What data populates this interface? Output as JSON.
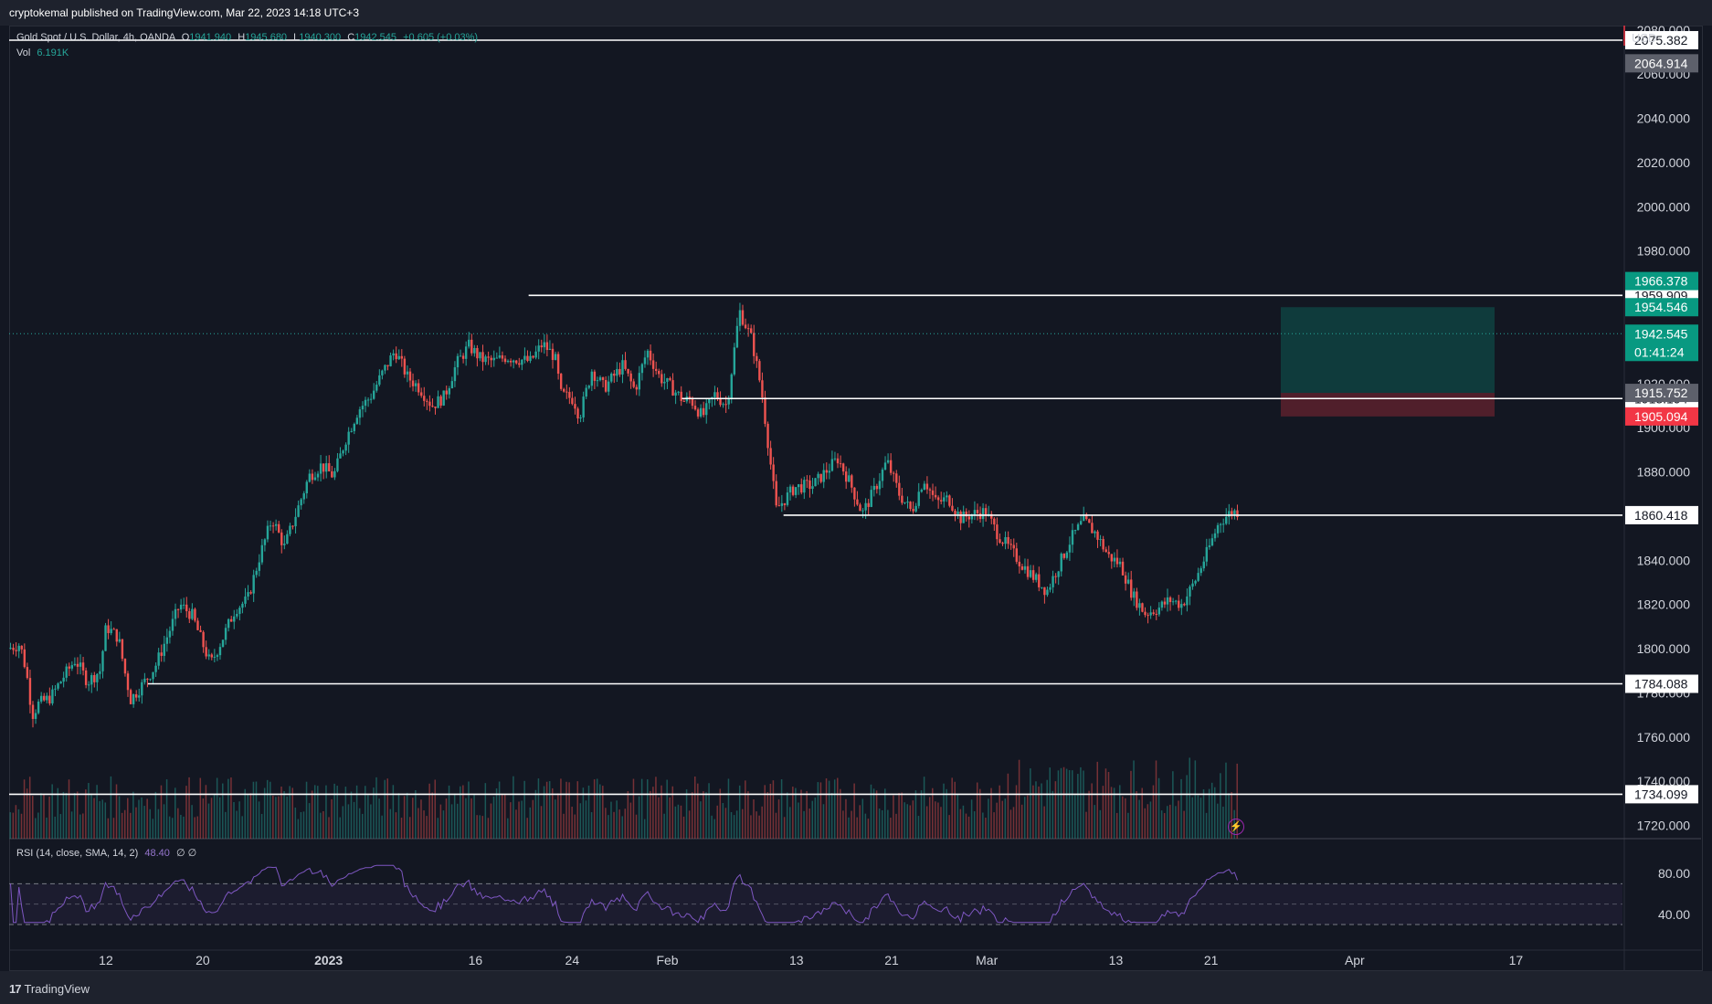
{
  "header": {
    "published": "cryptokemal published on TradingView.com, Mar 22, 2023 14:18 UTC+3"
  },
  "legend": {
    "symbol": "Gold Spot / U.S. Dollar, 4h, OANDA",
    "open_label": "O",
    "open": "1941.940",
    "high_label": "H",
    "high": "1945.680",
    "low_label": "L",
    "low": "1940.300",
    "close_label": "C",
    "close": "1942.545",
    "change": "+0.605 (+0.03%)",
    "vol_label": "Vol",
    "vol_value": "6.191K"
  },
  "rsi_legend": {
    "label": "RSI (14, close, SMA, 14, 2)",
    "value": "48.40",
    "extra": "∅ ∅"
  },
  "axis": {
    "currency": "USD"
  },
  "footer": {
    "brand": "TradingView",
    "logo": "tradingview-logo-icon"
  },
  "colors": {
    "up": "#26a69a",
    "down": "#ef5350",
    "background": "#131722",
    "rsi": "#7e57c2"
  },
  "chart_data": {
    "type": "candlestick",
    "title": "Gold Spot / U.S. Dollar, 4h, OANDA",
    "ylim": [
      1714,
      2082
    ],
    "y_ticks": [
      "1720.000",
      "1740.000",
      "1760.000",
      "1780.000",
      "1800.000",
      "1820.000",
      "1840.000",
      "1860.000",
      "1880.000",
      "1900.000",
      "1920.000",
      "1940.000",
      "1960.000",
      "1980.000",
      "2000.000",
      "2020.000",
      "2040.000",
      "2060.000",
      "2080.000"
    ],
    "x_ticks": [
      {
        "label": "12",
        "bold": false,
        "t": 0.06
      },
      {
        "label": "20",
        "bold": false,
        "t": 0.12
      },
      {
        "label": "2023",
        "bold": true,
        "t": 0.198
      },
      {
        "label": "16",
        "bold": false,
        "t": 0.289
      },
      {
        "label": "24",
        "bold": false,
        "t": 0.349
      },
      {
        "label": "Feb",
        "bold": false,
        "t": 0.408
      },
      {
        "label": "13",
        "bold": false,
        "t": 0.488
      },
      {
        "label": "21",
        "bold": false,
        "t": 0.547
      },
      {
        "label": "Mar",
        "bold": false,
        "t": 0.606
      },
      {
        "label": "13",
        "bold": false,
        "t": 0.686
      },
      {
        "label": "21",
        "bold": false,
        "t": 0.745
      },
      {
        "label": "Apr",
        "bold": false,
        "t": 0.834
      },
      {
        "label": "17",
        "bold": false,
        "t": 0.934
      }
    ],
    "price_path": [
      [
        0.0,
        1800
      ],
      [
        0.01,
        1802
      ],
      [
        0.015,
        1790
      ],
      [
        0.02,
        1770
      ],
      [
        0.025,
        1775
      ],
      [
        0.035,
        1778
      ],
      [
        0.045,
        1787
      ],
      [
        0.055,
        1795
      ],
      [
        0.065,
        1785
      ],
      [
        0.075,
        1790
      ],
      [
        0.08,
        1810
      ],
      [
        0.09,
        1805
      ],
      [
        0.095,
        1790
      ],
      [
        0.1,
        1777
      ],
      [
        0.11,
        1784
      ],
      [
        0.12,
        1792
      ],
      [
        0.13,
        1806
      ],
      [
        0.14,
        1820
      ],
      [
        0.15,
        1815
      ],
      [
        0.16,
        1800
      ],
      [
        0.165,
        1793
      ],
      [
        0.175,
        1805
      ],
      [
        0.185,
        1818
      ],
      [
        0.195,
        1822
      ],
      [
        0.205,
        1842
      ],
      [
        0.215,
        1859
      ],
      [
        0.225,
        1846
      ],
      [
        0.235,
        1862
      ],
      [
        0.245,
        1878
      ],
      [
        0.255,
        1883
      ],
      [
        0.265,
        1878
      ],
      [
        0.275,
        1895
      ],
      [
        0.285,
        1908
      ],
      [
        0.295,
        1914
      ],
      [
        0.305,
        1925
      ],
      [
        0.315,
        1935
      ],
      [
        0.325,
        1923
      ],
      [
        0.335,
        1918
      ],
      [
        0.345,
        1910
      ],
      [
        0.355,
        1914
      ],
      [
        0.365,
        1929
      ],
      [
        0.375,
        1937
      ],
      [
        0.385,
        1931
      ],
      [
        0.395,
        1930
      ],
      [
        0.405,
        1932
      ],
      [
        0.415,
        1931
      ],
      [
        0.425,
        1930
      ],
      [
        0.435,
        1938
      ],
      [
        0.445,
        1932
      ],
      [
        0.45,
        1915
      ],
      [
        0.46,
        1913
      ],
      [
        0.465,
        1905
      ],
      [
        0.475,
        1926
      ],
      [
        0.485,
        1918
      ],
      [
        0.5,
        1928
      ],
      [
        0.51,
        1917
      ],
      [
        0.52,
        1935
      ],
      [
        0.53,
        1923
      ],
      [
        0.54,
        1918
      ],
      [
        0.55,
        1912
      ],
      [
        0.555,
        1913
      ],
      [
        0.565,
        1905
      ],
      [
        0.575,
        1915
      ],
      [
        0.585,
        1910
      ],
      [
        0.595,
        1953
      ],
      [
        0.605,
        1940
      ],
      [
        0.613,
        1917
      ],
      [
        0.625,
        1863
      ],
      [
        0.64,
        1873
      ],
      [
        0.655,
        1874
      ],
      [
        0.665,
        1880
      ],
      [
        0.675,
        1886
      ],
      [
        0.685,
        1875
      ],
      [
        0.695,
        1861
      ],
      [
        0.705,
        1872
      ],
      [
        0.715,
        1885
      ],
      [
        0.725,
        1870
      ],
      [
        0.735,
        1862
      ],
      [
        0.745,
        1877
      ],
      [
        0.755,
        1866
      ],
      [
        0.765,
        1868
      ],
      [
        0.775,
        1859
      ],
      [
        0.785,
        1861
      ],
      [
        0.795,
        1862
      ],
      [
        0.805,
        1852
      ],
      [
        0.815,
        1845
      ],
      [
        0.825,
        1838
      ],
      [
        0.835,
        1832
      ],
      [
        0.845,
        1826
      ],
      [
        0.855,
        1838
      ],
      [
        0.865,
        1850
      ],
      [
        0.875,
        1858
      ],
      [
        0.885,
        1852
      ],
      [
        0.895,
        1842
      ],
      [
        0.905,
        1838
      ],
      [
        0.915,
        1824
      ],
      [
        0.925,
        1816
      ],
      [
        0.935,
        1818
      ],
      [
        0.945,
        1822
      ],
      [
        0.955,
        1820
      ],
      [
        0.965,
        1830
      ],
      [
        0.975,
        1843
      ],
      [
        0.985,
        1857
      ],
      [
        0.995,
        1862
      ]
    ],
    "rsi_ticks": [
      "80.00",
      "40.00"
    ],
    "rsi_range": [
      30,
      90
    ],
    "rsi_bands": [
      70,
      30
    ],
    "horizontal_levels": [
      {
        "price": 2075.382,
        "label": "2075.382",
        "x_start": 0.0
      },
      {
        "price": 1959.909,
        "label": "1959.909",
        "x_start": 0.322
      },
      {
        "price": 1913.194,
        "label": "1913.194",
        "x_start": 0.417
      },
      {
        "price": 1860.418,
        "label": "1860.418",
        "x_start": 0.48
      },
      {
        "price": 1784.088,
        "label": "1784.088",
        "x_start": 0.086
      },
      {
        "price": 1734.099,
        "label": "1734.099",
        "x_start": 0.0
      }
    ],
    "price_labels": [
      {
        "price": 2064.914,
        "label": "2064.914",
        "bg": "#5d606b",
        "fg": "#ffffff"
      },
      {
        "price": 1966.378,
        "label": "1966.378",
        "bg": "#089981",
        "fg": "#ffffff"
      },
      {
        "price": 1954.546,
        "label": "1954.546",
        "bg": "#089981",
        "fg": "#ffffff"
      },
      {
        "price": 1942.545,
        "label": "1942.545",
        "sub": "01:41:24",
        "bg": "#089981",
        "fg": "#ffffff"
      },
      {
        "price": 1915.752,
        "label": "1915.752",
        "bg": "#5d606b",
        "fg": "#ffffff"
      },
      {
        "price": 1905.094,
        "label": "1905.094",
        "bg": "#f23645",
        "fg": "#ffffff"
      }
    ],
    "position": {
      "entry": 1915.752,
      "target": 1954.546,
      "stop": 1905.094
    },
    "last_price": 1942.545
  }
}
